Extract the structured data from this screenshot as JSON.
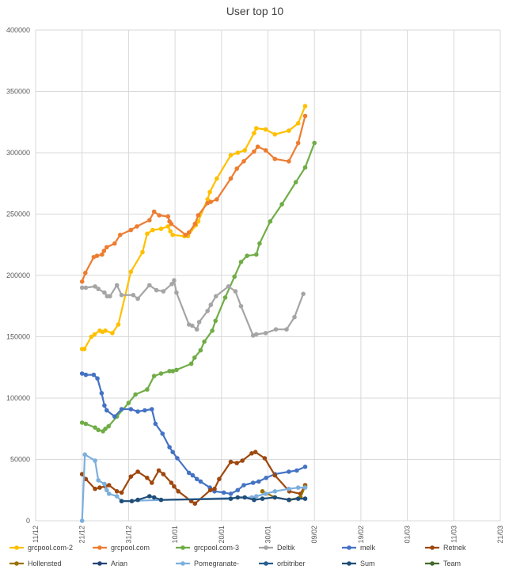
{
  "chart_data": {
    "type": "line",
    "title": "User top 10",
    "xlabel": "",
    "ylabel": "",
    "ylim": [
      0,
      400000
    ],
    "y_ticks": [
      0,
      50000,
      100000,
      150000,
      200000,
      250000,
      300000,
      350000,
      400000
    ],
    "x_ticks": [
      "11/12",
      "21/12",
      "31/12",
      "10/01",
      "20/01",
      "30/01",
      "09/02",
      "19/02",
      "01/03",
      "11/03",
      "21/03"
    ],
    "grid": "vertical and horizontal",
    "legend_position": "bottom",
    "series": [
      {
        "name": "grcpool.com-2",
        "color": "#FFC000",
        "points": [
          [
            10.0,
            140000
          ],
          [
            10.5,
            140000
          ],
          [
            12.0,
            150000
          ],
          [
            12.7,
            152000
          ],
          [
            13.8,
            155000
          ],
          [
            14.4,
            154000
          ],
          [
            15.0,
            155000
          ],
          [
            16.5,
            153000
          ],
          [
            17.8,
            160000
          ],
          [
            20.5,
            203000
          ],
          [
            23.0,
            219000
          ],
          [
            24.0,
            234000
          ],
          [
            25.2,
            237000
          ],
          [
            27.0,
            238000
          ],
          [
            28.5,
            240000
          ],
          [
            29.0,
            236000
          ],
          [
            29.5,
            233000
          ],
          [
            32.0,
            232000
          ],
          [
            32.8,
            232000
          ],
          [
            34.5,
            241000
          ],
          [
            35.0,
            244000
          ],
          [
            37.0,
            262000
          ],
          [
            37.5,
            268000
          ],
          [
            39.0,
            279000
          ],
          [
            42.0,
            298000
          ],
          [
            43.5,
            300000
          ],
          [
            45.0,
            302000
          ],
          [
            47.0,
            316000
          ],
          [
            47.5,
            320000
          ],
          [
            49.5,
            319000
          ],
          [
            51.5,
            315000
          ],
          [
            54.5,
            318000
          ],
          [
            56.5,
            324000
          ],
          [
            58.0,
            338000
          ]
        ]
      },
      {
        "name": "grcpool.com",
        "color": "#ED7D31",
        "points": [
          [
            10.0,
            195000
          ],
          [
            10.7,
            202000
          ],
          [
            12.5,
            215000
          ],
          [
            13.2,
            216000
          ],
          [
            14.3,
            217000
          ],
          [
            14.7,
            220000
          ],
          [
            15.3,
            223000
          ],
          [
            17.0,
            226000
          ],
          [
            18.2,
            233000
          ],
          [
            20.5,
            237000
          ],
          [
            21.8,
            240000
          ],
          [
            24.5,
            245000
          ],
          [
            25.5,
            252000
          ],
          [
            26.6,
            249000
          ],
          [
            28.5,
            248000
          ],
          [
            28.8,
            244000
          ],
          [
            29.2,
            242000
          ],
          [
            32.3,
            233000
          ],
          [
            33.0,
            235000
          ],
          [
            34.3,
            242000
          ],
          [
            35.0,
            249000
          ],
          [
            37.0,
            259000
          ],
          [
            37.7,
            260000
          ],
          [
            39.0,
            262000
          ],
          [
            42.0,
            279000
          ],
          [
            43.3,
            287000
          ],
          [
            44.8,
            293000
          ],
          [
            47.0,
            301000
          ],
          [
            47.8,
            305000
          ],
          [
            49.5,
            302000
          ],
          [
            51.5,
            295000
          ],
          [
            54.5,
            293000
          ],
          [
            56.5,
            308000
          ],
          [
            58.0,
            330000
          ]
        ]
      },
      {
        "name": "grcpool.com-3",
        "color": "#70AD47",
        "points": [
          [
            10.0,
            80000
          ],
          [
            10.8,
            79000
          ],
          [
            12.8,
            76000
          ],
          [
            13.5,
            74000
          ],
          [
            14.5,
            73000
          ],
          [
            15.0,
            75000
          ],
          [
            15.7,
            77000
          ],
          [
            17.5,
            85000
          ],
          [
            20.0,
            96000
          ],
          [
            21.5,
            103000
          ],
          [
            24.0,
            107000
          ],
          [
            25.5,
            118000
          ],
          [
            27.0,
            120000
          ],
          [
            28.8,
            122000
          ],
          [
            29.5,
            122000
          ],
          [
            30.3,
            123000
          ],
          [
            33.5,
            128000
          ],
          [
            34.2,
            133000
          ],
          [
            35.5,
            139000
          ],
          [
            36.3,
            146000
          ],
          [
            38.0,
            155000
          ],
          [
            38.7,
            163000
          ],
          [
            40.8,
            182000
          ],
          [
            42.8,
            199000
          ],
          [
            44.2,
            211000
          ],
          [
            45.5,
            216000
          ],
          [
            47.5,
            217000
          ],
          [
            48.2,
            226000
          ],
          [
            50.5,
            244000
          ],
          [
            53.0,
            258000
          ],
          [
            56.0,
            276000
          ],
          [
            58.0,
            288000
          ],
          [
            60.0,
            308000
          ]
        ]
      },
      {
        "name": "Deltik",
        "color": "#A5A5A5",
        "points": [
          [
            10.0,
            190000
          ],
          [
            10.8,
            190000
          ],
          [
            12.8,
            191000
          ],
          [
            13.5,
            189000
          ],
          [
            14.8,
            186000
          ],
          [
            15.4,
            183000
          ],
          [
            16.0,
            183000
          ],
          [
            17.5,
            192000
          ],
          [
            18.5,
            184000
          ],
          [
            21.0,
            184000
          ],
          [
            22.0,
            181000
          ],
          [
            24.5,
            192000
          ],
          [
            26.0,
            188000
          ],
          [
            27.5,
            187000
          ],
          [
            29.3,
            193000
          ],
          [
            29.8,
            196000
          ],
          [
            30.3,
            186000
          ],
          [
            33.0,
            160000
          ],
          [
            33.7,
            159000
          ],
          [
            34.7,
            156000
          ],
          [
            35.2,
            162000
          ],
          [
            37.0,
            171000
          ],
          [
            37.7,
            176000
          ],
          [
            38.8,
            183000
          ],
          [
            41.5,
            191000
          ],
          [
            43.0,
            187000
          ],
          [
            44.2,
            175000
          ],
          [
            46.8,
            151000
          ],
          [
            47.5,
            152000
          ],
          [
            49.5,
            153000
          ],
          [
            51.7,
            156000
          ],
          [
            54.0,
            156000
          ],
          [
            55.7,
            166000
          ],
          [
            57.6,
            185000
          ]
        ]
      },
      {
        "name": "melk",
        "color": "#4472C4",
        "points": [
          [
            10.0,
            120000
          ],
          [
            10.8,
            119000
          ],
          [
            12.5,
            119000
          ],
          [
            13.3,
            116000
          ],
          [
            14.2,
            104000
          ],
          [
            14.8,
            94000
          ],
          [
            15.3,
            90000
          ],
          [
            17.0,
            85000
          ],
          [
            18.5,
            91000
          ],
          [
            20.5,
            91000
          ],
          [
            22.0,
            89000
          ],
          [
            23.5,
            90000
          ],
          [
            25.0,
            91000
          ],
          [
            25.8,
            79000
          ],
          [
            27.3,
            71000
          ],
          [
            28.8,
            60000
          ],
          [
            29.5,
            56000
          ],
          [
            30.5,
            51000
          ],
          [
            33.0,
            39000
          ],
          [
            33.8,
            37000
          ],
          [
            34.7,
            34000
          ],
          [
            35.5,
            32000
          ],
          [
            37.5,
            27000
          ],
          [
            38.5,
            24000
          ],
          [
            40.5,
            23000
          ],
          [
            42.0,
            22000
          ],
          [
            43.5,
            25000
          ],
          [
            44.8,
            29000
          ],
          [
            46.8,
            31000
          ],
          [
            48.0,
            32000
          ],
          [
            49.6,
            35000
          ],
          [
            51.5,
            38000
          ],
          [
            54.5,
            40000
          ],
          [
            56.2,
            41000
          ],
          [
            58.0,
            44000
          ]
        ]
      },
      {
        "name": "Retnek",
        "color": "#9E480E",
        "points": [
          [
            10.0,
            38000
          ],
          [
            10.8,
            34000
          ],
          [
            12.8,
            26000
          ],
          [
            13.8,
            27000
          ],
          [
            15.0,
            28000
          ],
          [
            15.8,
            29000
          ],
          [
            17.5,
            24000
          ],
          [
            18.5,
            23000
          ],
          [
            20.5,
            36000
          ],
          [
            22.0,
            40000
          ],
          [
            24.0,
            35000
          ],
          [
            25.0,
            31000
          ],
          [
            26.5,
            41000
          ],
          [
            27.5,
            38000
          ],
          [
            29.2,
            31000
          ],
          [
            29.8,
            28000
          ],
          [
            30.7,
            24000
          ],
          [
            33.5,
            16000
          ],
          [
            34.3,
            14000
          ],
          [
            37.6,
            25000
          ],
          [
            38.5,
            26000
          ],
          [
            39.5,
            34000
          ],
          [
            42.0,
            48000
          ],
          [
            43.3,
            47000
          ],
          [
            44.5,
            49000
          ],
          [
            46.5,
            55000
          ],
          [
            47.3,
            56000
          ],
          [
            49.3,
            51000
          ],
          [
            51.5,
            37000
          ],
          [
            54.6,
            24000
          ],
          [
            57.0,
            22000
          ],
          [
            58.0,
            29000
          ]
        ]
      },
      {
        "name": "Hollensted",
        "color": "#997300",
        "points": [
          [
            48.8,
            24000
          ],
          [
            51.5,
            19000
          ],
          [
            54.6,
            17000
          ],
          [
            57.0,
            19000
          ],
          [
            58.0,
            28000
          ]
        ]
      },
      {
        "name": "Arian",
        "color": "#264478",
        "points": []
      },
      {
        "name": "Pomegranate-",
        "color": "#7CAFDD",
        "points": [
          [
            10.0,
            0
          ],
          [
            10.6,
            54000
          ],
          [
            12.8,
            49000
          ],
          [
            13.5,
            33000
          ],
          [
            14.8,
            30000
          ],
          [
            15.3,
            25000
          ],
          [
            15.8,
            22000
          ],
          [
            17.5,
            20000
          ],
          [
            18.5,
            16000
          ],
          [
            46.5,
            19000
          ],
          [
            47.5,
            20000
          ],
          [
            49.5,
            22000
          ],
          [
            51.5,
            24000
          ],
          [
            54.5,
            26000
          ],
          [
            56.5,
            27000
          ],
          [
            58.0,
            27000
          ]
        ]
      },
      {
        "name": "orbitriber",
        "color": "#255E91",
        "points": []
      },
      {
        "name": "Sum",
        "color": "#1F4E79",
        "points": [
          [
            18.5,
            16000
          ],
          [
            20.7,
            16000
          ],
          [
            22.0,
            17000
          ],
          [
            24.5,
            20000
          ],
          [
            25.5,
            19000
          ],
          [
            27.0,
            17000
          ],
          [
            42.0,
            18000
          ],
          [
            43.5,
            19000
          ],
          [
            45.0,
            19000
          ],
          [
            47.0,
            17000
          ],
          [
            48.8,
            18000
          ],
          [
            51.5,
            19000
          ],
          [
            54.5,
            17000
          ],
          [
            56.5,
            18000
          ],
          [
            58.0,
            18000
          ]
        ]
      },
      {
        "name": "Team",
        "color": "#43682B",
        "points": []
      }
    ]
  }
}
